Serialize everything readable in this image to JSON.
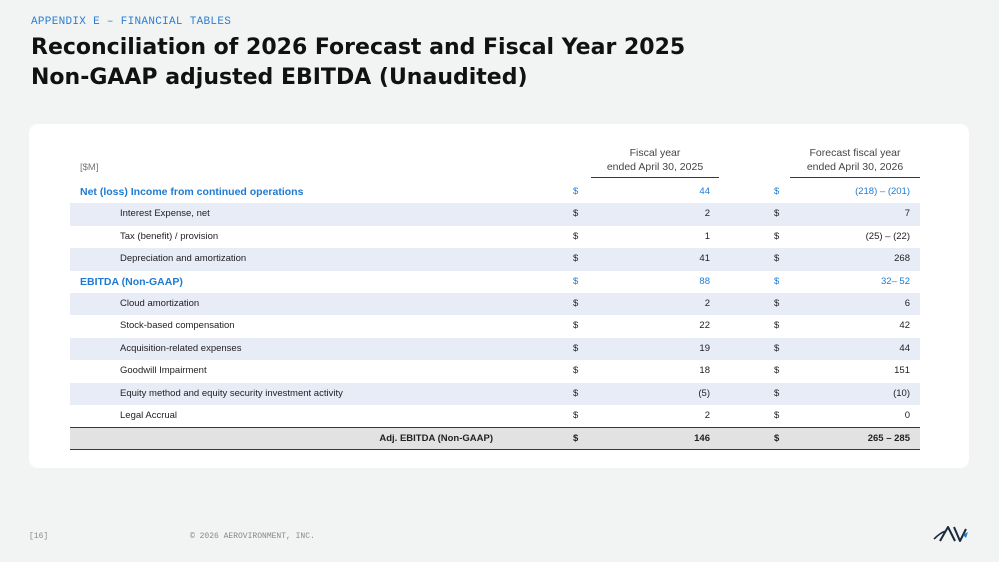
{
  "header": {
    "appendix": "APPENDIX E – FINANCIAL TABLES",
    "title_line1": "Reconciliation of 2026 Forecast and Fiscal Year 2025",
    "title_line2": "Non-GAAP adjusted EBITDA (Unaudited)"
  },
  "table": {
    "unit": "[$M]",
    "col1_line1": "Fiscal year",
    "col1_line2": "ended April 30, 2025",
    "col2_line1": "Forecast fiscal year",
    "col2_line2": "ended April 30, 2026",
    "rows": [
      {
        "label": "Net (loss) Income from continued operations",
        "c1": "$",
        "v1": "44",
        "c2": "$",
        "v2": "(218) – (201)"
      },
      {
        "label": "Interest Expense, net",
        "c1": "$",
        "v1": "2",
        "c2": "$",
        "v2": "7"
      },
      {
        "label": "Tax (benefit) / provision",
        "c1": "$",
        "v1": "1",
        "c2": "$",
        "v2": "(25) – (22)"
      },
      {
        "label": "Depreciation and amortization",
        "c1": "$",
        "v1": "41",
        "c2": "$",
        "v2": "268"
      },
      {
        "label": "EBITDA (Non-GAAP)",
        "c1": "$",
        "v1": "88",
        "c2": "$",
        "v2": "32– 52"
      },
      {
        "label": "Cloud amortization",
        "c1": "$",
        "v1": "2",
        "c2": "$",
        "v2": "6"
      },
      {
        "label": "Stock-based compensation",
        "c1": "$",
        "v1": "22",
        "c2": "$",
        "v2": "42"
      },
      {
        "label": "Acquisition-related expenses",
        "c1": "$",
        "v1": "19",
        "c2": "$",
        "v2": "44"
      },
      {
        "label": "Goodwill Impairment",
        "c1": "$",
        "v1": "18",
        "c2": "$",
        "v2": "151"
      },
      {
        "label": "Equity method and equity security investment activity",
        "c1": "$",
        "v1": "(5)",
        "c2": "$",
        "v2": "(10)"
      },
      {
        "label": "Legal Accrual",
        "c1": "$",
        "v1": "2",
        "c2": "$",
        "v2": "0"
      }
    ],
    "total": {
      "label": "Adj. EBITDA (Non-GAAP)",
      "c1": "$",
      "v1": "146",
      "c2": "$",
      "v2": "265 – 285"
    }
  },
  "footer": {
    "page": "[16]",
    "copyright": "© 2026 AEROVIRONMENT, INC.",
    "logo_text": "AV"
  },
  "colors": {
    "accent": "#1f7ad1",
    "shade": "#e8ecf7"
  }
}
